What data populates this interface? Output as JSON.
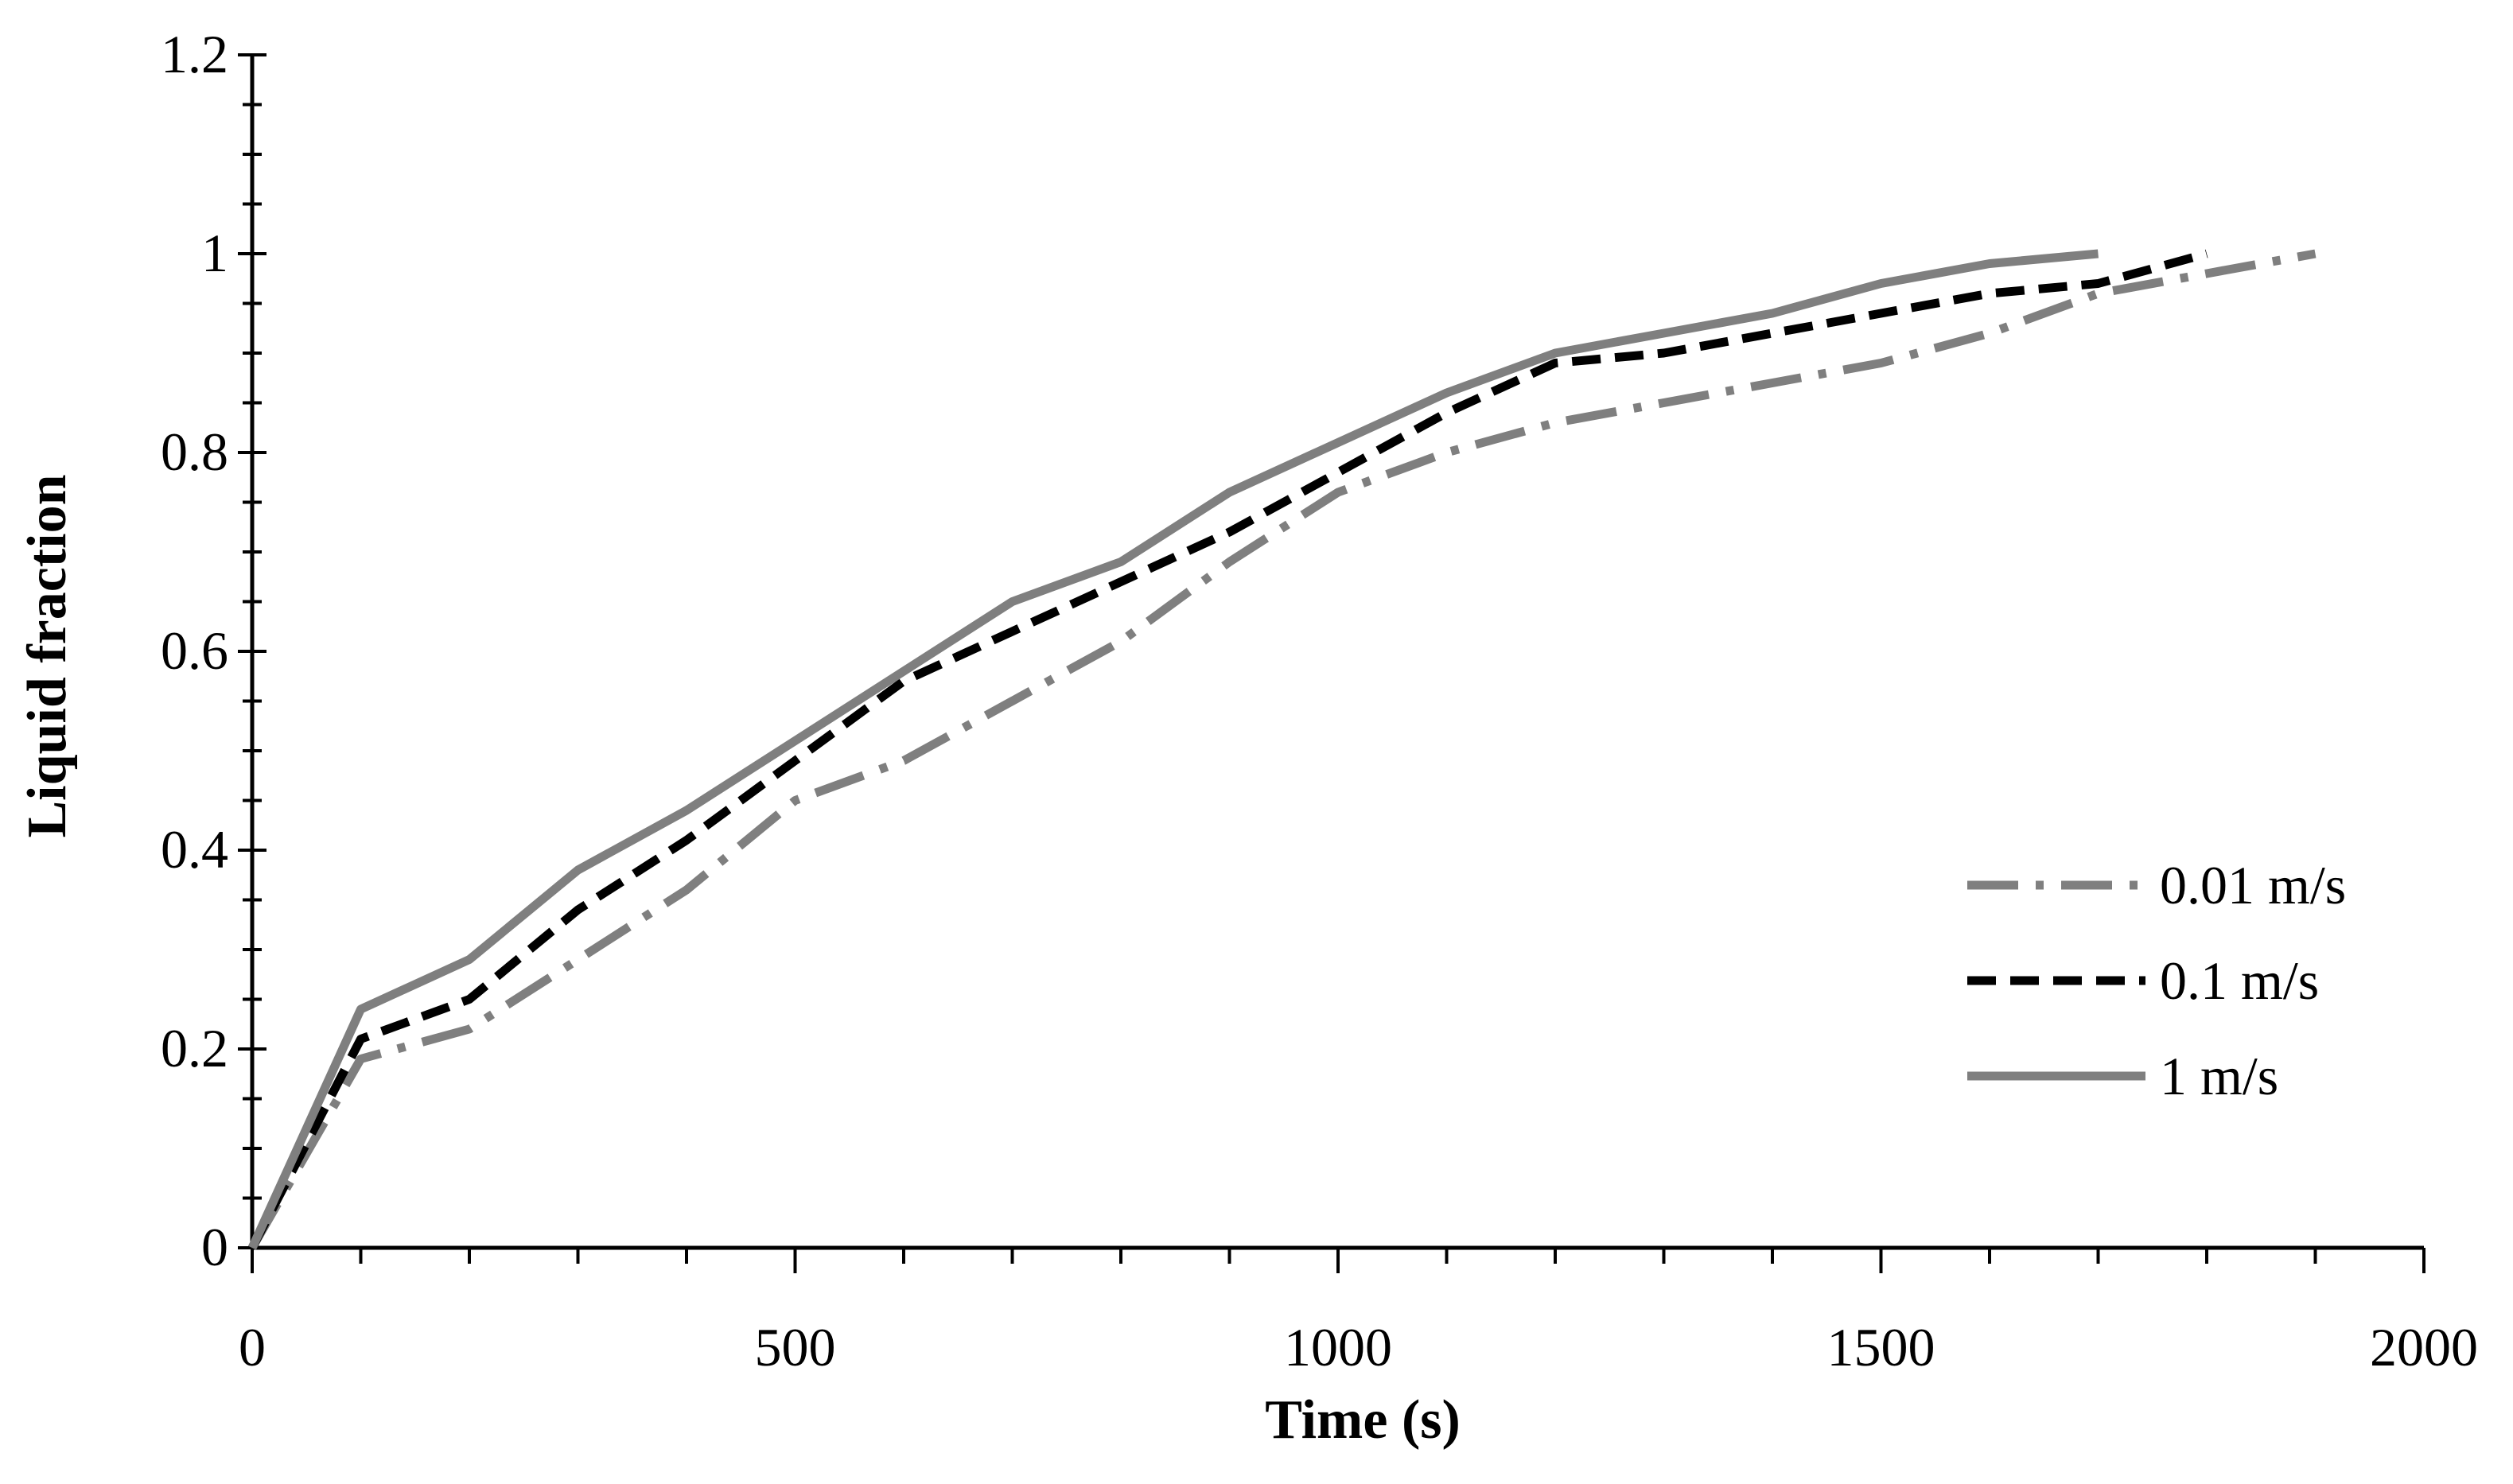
{
  "chart_data": {
    "type": "line",
    "title": "",
    "xlabel": "Time (s)",
    "ylabel": "Liquid fraction",
    "xlim": [
      0,
      2000
    ],
    "ylim": [
      0,
      1.2
    ],
    "x_ticks": [
      0,
      500,
      1000,
      1500,
      2000
    ],
    "x_tick_labels": [
      "0",
      "500",
      "1000",
      "1500",
      "2000"
    ],
    "x_minor_step": 100,
    "y_ticks": [
      0,
      0.2,
      0.4,
      0.6,
      0.8,
      1,
      1.2
    ],
    "y_tick_labels": [
      "0",
      "0.2",
      "0.4",
      "0.6",
      "0.8",
      "1",
      "1.2"
    ],
    "y_minor_step": 0.05,
    "grid": false,
    "legend_position": "right",
    "series": [
      {
        "name": "0.01 m/s",
        "color": "#7f7f7f",
        "style": "dash-dot",
        "x": [
          0,
          100,
          200,
          300,
          400,
          500,
          600,
          700,
          800,
          900,
          1000,
          1100,
          1200,
          1300,
          1400,
          1500,
          1600,
          1700,
          1800,
          1900
        ],
        "y": [
          0,
          0.19,
          0.22,
          0.29,
          0.36,
          0.45,
          0.49,
          0.55,
          0.61,
          0.69,
          0.76,
          0.8,
          0.83,
          0.85,
          0.87,
          0.89,
          0.92,
          0.96,
          0.98,
          1.0
        ]
      },
      {
        "name": "0.1 m/s",
        "color": "#000000",
        "style": "dash",
        "x": [
          0,
          100,
          200,
          300,
          400,
          500,
          600,
          700,
          800,
          900,
          1000,
          1100,
          1200,
          1300,
          1400,
          1500,
          1600,
          1700,
          1800
        ],
        "y": [
          0,
          0.21,
          0.25,
          0.34,
          0.41,
          0.49,
          0.57,
          0.62,
          0.67,
          0.72,
          0.78,
          0.84,
          0.89,
          0.9,
          0.92,
          0.94,
          0.96,
          0.97,
          1.0
        ]
      },
      {
        "name": "1 m/s",
        "color": "#7f7f7f",
        "style": "solid",
        "x": [
          0,
          100,
          200,
          300,
          400,
          500,
          600,
          700,
          800,
          900,
          1000,
          1100,
          1200,
          1300,
          1400,
          1500,
          1600,
          1700
        ],
        "y": [
          0,
          0.24,
          0.29,
          0.38,
          0.44,
          0.51,
          0.58,
          0.65,
          0.69,
          0.76,
          0.81,
          0.86,
          0.9,
          0.92,
          0.94,
          0.97,
          0.99,
          1.0
        ]
      }
    ]
  }
}
